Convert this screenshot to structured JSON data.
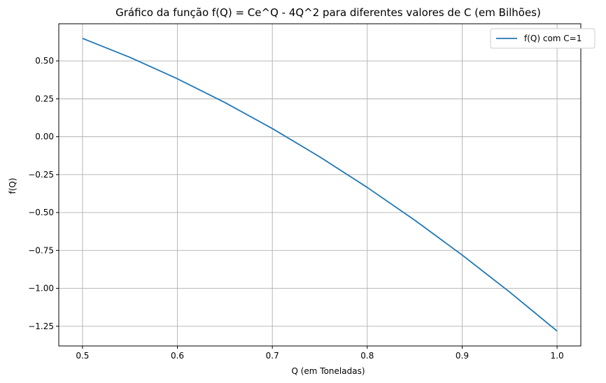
{
  "chart_data": {
    "type": "line",
    "title": "Gráfico da função f(Q) = Ce^Q - 4Q^2 para diferentes valores de C (em Bilhões)",
    "xlabel": "Q (em Toneladas)",
    "ylabel": "f(Q)",
    "xlim": [
      0.475,
      1.025
    ],
    "ylim": [
      -1.38,
      0.745
    ],
    "xticks": [
      0.5,
      0.6,
      0.7,
      0.8,
      0.9,
      1.0
    ],
    "xtick_labels": [
      "0.5",
      "0.6",
      "0.7",
      "0.8",
      "0.9",
      "1.0"
    ],
    "yticks": [
      0.5,
      0.25,
      0.0,
      -0.25,
      -0.5,
      -0.75,
      -1.0,
      -1.25
    ],
    "ytick_labels": [
      "0.50",
      "0.25",
      "0.00",
      "−0.25",
      "−0.50",
      "−0.75",
      "−1.00",
      "−1.25"
    ],
    "grid": true,
    "legend_position": "top-right",
    "series": [
      {
        "name": "f(Q) com C=1",
        "color": "#1f77b4",
        "x": [
          0.5,
          0.55,
          0.6,
          0.65,
          0.7,
          0.75,
          0.8,
          0.85,
          0.9,
          0.95,
          1.0
        ],
        "y": [
          0.6487,
          0.5233,
          0.3821,
          0.2255,
          0.0538,
          -0.133,
          -0.3345,
          -0.5503,
          -0.7804,
          -1.0242,
          -1.2817
        ]
      }
    ]
  }
}
